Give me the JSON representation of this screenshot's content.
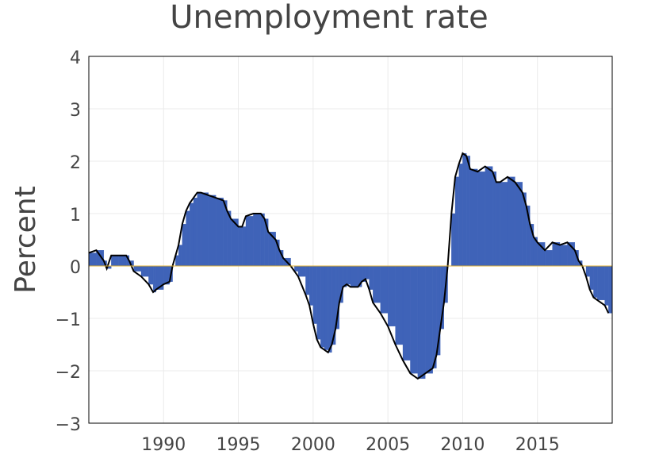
{
  "chart_data": {
    "type": "bar-line",
    "title": "Unemployment rate",
    "y_label": "Percent",
    "x": [
      1985.0,
      1985.5,
      1986.0,
      1986.2,
      1986.5,
      1987.0,
      1987.5,
      1987.7,
      1988.0,
      1988.5,
      1989.0,
      1989.3,
      1989.5,
      1990.0,
      1990.4,
      1990.6,
      1990.8,
      1991.0,
      1991.25,
      1991.5,
      1991.75,
      1992.0,
      1992.25,
      1992.5,
      1993.0,
      1993.5,
      1994.0,
      1994.25,
      1994.5,
      1995.0,
      1995.25,
      1995.5,
      1996.0,
      1996.5,
      1996.75,
      1997.0,
      1997.5,
      1997.75,
      1998.0,
      1998.5,
      1998.75,
      1999.0,
      1999.5,
      1999.75,
      2000.0,
      2000.25,
      2000.5,
      2000.75,
      2001.0,
      2001.25,
      2001.5,
      2001.75,
      2002.0,
      2002.25,
      2002.5,
      2003.0,
      2003.25,
      2003.5,
      2003.75,
      2004.0,
      2004.5,
      2005.0,
      2005.5,
      2006.0,
      2006.5,
      2007.0,
      2007.5,
      2008.0,
      2008.25,
      2008.5,
      2008.75,
      2009.0,
      2009.25,
      2009.5,
      2009.75,
      2010.0,
      2010.25,
      2010.5,
      2011.0,
      2011.5,
      2012.0,
      2012.25,
      2012.5,
      2013.0,
      2013.5,
      2014.0,
      2014.25,
      2014.5,
      2014.75,
      2015.0,
      2015.5,
      2016.0,
      2016.5,
      2017.0,
      2017.5,
      2017.75,
      2018.0,
      2018.25,
      2018.5,
      2018.75,
      2019.0,
      2019.5,
      2019.75
    ],
    "series": [
      {
        "color": "#3f63b8",
        "line_color": "#000000",
        "values": [
          0.25,
          0.3,
          0.1,
          -0.05,
          0.2,
          0.2,
          0.2,
          0.1,
          -0.1,
          -0.2,
          -0.35,
          -0.5,
          -0.45,
          -0.35,
          -0.3,
          0.0,
          0.2,
          0.4,
          0.8,
          1.05,
          1.2,
          1.3,
          1.4,
          1.4,
          1.35,
          1.3,
          1.25,
          1.05,
          0.9,
          0.75,
          0.75,
          0.95,
          1.0,
          1.0,
          0.9,
          0.65,
          0.5,
          0.3,
          0.15,
          0.0,
          -0.1,
          -0.2,
          -0.55,
          -0.75,
          -1.1,
          -1.4,
          -1.55,
          -1.6,
          -1.65,
          -1.5,
          -1.2,
          -0.7,
          -0.4,
          -0.35,
          -0.4,
          -0.4,
          -0.3,
          -0.25,
          -0.45,
          -0.7,
          -0.9,
          -1.15,
          -1.5,
          -1.8,
          -2.05,
          -2.15,
          -2.05,
          -1.95,
          -1.7,
          -1.2,
          -0.7,
          0.0,
          1.0,
          1.7,
          1.95,
          2.15,
          2.1,
          1.85,
          1.8,
          1.9,
          1.8,
          1.6,
          1.6,
          1.7,
          1.6,
          1.4,
          1.15,
          0.8,
          0.55,
          0.45,
          0.3,
          0.45,
          0.4,
          0.45,
          0.3,
          0.1,
          0.0,
          -0.2,
          -0.45,
          -0.6,
          -0.65,
          -0.75,
          -0.9
        ]
      }
    ],
    "xlim": [
      1985,
      2020
    ],
    "xticks": [
      1990,
      1995,
      2000,
      2005,
      2010,
      2015
    ],
    "ylim": [
      -3,
      4
    ],
    "yticks": [
      {
        "value": -3,
        "label": "−3"
      },
      {
        "value": -2,
        "label": "−2"
      },
      {
        "value": -1,
        "label": "−1"
      },
      0,
      1,
      2,
      3,
      4
    ],
    "grid": true
  }
}
